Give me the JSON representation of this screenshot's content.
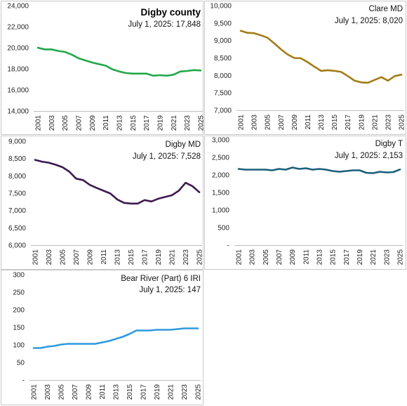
{
  "chart_data": [
    {
      "type": "line",
      "title": "Digby county",
      "subtitle": "July 1, 2025: 17,848",
      "color": "#22a84a",
      "ylim": [
        14000,
        24000
      ],
      "yticks": [
        14000,
        16000,
        18000,
        20000,
        22000,
        24000
      ],
      "ytick_labels": [
        "14,000",
        "16,000",
        "18,000",
        "20,000",
        "22,000",
        "24,000"
      ],
      "x": [
        2001,
        2002,
        2003,
        2004,
        2005,
        2006,
        2007,
        2008,
        2009,
        2010,
        2011,
        2012,
        2013,
        2014,
        2015,
        2016,
        2017,
        2018,
        2019,
        2020,
        2021,
        2022,
        2023,
        2024,
        2025
      ],
      "xtick_labels": [
        "2001",
        "2003",
        "2005",
        "2007",
        "2009",
        "2011",
        "2013",
        "2015",
        "2017",
        "2019",
        "2021",
        "2023",
        "2025"
      ],
      "values": [
        20000,
        19850,
        19850,
        19700,
        19600,
        19350,
        19000,
        18800,
        18600,
        18450,
        18300,
        17950,
        17750,
        17600,
        17550,
        17550,
        17550,
        17350,
        17400,
        17350,
        17450,
        17750,
        17800,
        17880,
        17848
      ]
    },
    {
      "type": "line",
      "title": "Clare MD",
      "subtitle": "July 1, 2025: 8,020",
      "color": "#a27c15",
      "ylim": [
        7000,
        10000
      ],
      "yticks": [
        7000,
        7500,
        8000,
        8500,
        9000,
        9500,
        10000
      ],
      "ytick_labels": [
        "7,000",
        "7,500",
        "8,000",
        "8,500",
        "9,000",
        "9,500",
        "10,000"
      ],
      "x": [
        2001,
        2002,
        2003,
        2004,
        2005,
        2006,
        2007,
        2008,
        2009,
        2010,
        2011,
        2012,
        2013,
        2014,
        2015,
        2016,
        2017,
        2018,
        2019,
        2020,
        2021,
        2022,
        2023,
        2024,
        2025
      ],
      "xtick_labels": [
        "2001",
        "2003",
        "2005",
        "2007",
        "2009",
        "2011",
        "2013",
        "2015",
        "2017",
        "2019",
        "2021",
        "2023",
        "2025"
      ],
      "values": [
        9280,
        9220,
        9210,
        9150,
        9080,
        8920,
        8750,
        8600,
        8500,
        8490,
        8380,
        8250,
        8130,
        8150,
        8130,
        8100,
        7980,
        7850,
        7800,
        7790,
        7870,
        7950,
        7850,
        7980,
        8020
      ]
    },
    {
      "type": "line",
      "title": "Digby MD",
      "subtitle": "July 1, 2025: 7,528",
      "color": "#3d1a4f",
      "ylim": [
        6000,
        9000
      ],
      "yticks": [
        6000,
        6500,
        7000,
        7500,
        8000,
        8500,
        9000
      ],
      "ytick_labels": [
        "6,000",
        "6,500",
        "7,000",
        "7,500",
        "8,000",
        "8,500",
        "9,000"
      ],
      "x": [
        2001,
        2002,
        2003,
        2004,
        2005,
        2006,
        2007,
        2008,
        2009,
        2010,
        2011,
        2012,
        2013,
        2014,
        2015,
        2016,
        2017,
        2018,
        2019,
        2020,
        2021,
        2022,
        2023,
        2024,
        2025
      ],
      "xtick_labels": [
        "2001",
        "2003",
        "2005",
        "2007",
        "2009",
        "2011",
        "2013",
        "2015",
        "2017",
        "2019",
        "2021",
        "2023",
        "2025"
      ],
      "values": [
        8460,
        8410,
        8380,
        8320,
        8250,
        8120,
        7920,
        7880,
        7740,
        7650,
        7570,
        7490,
        7320,
        7220,
        7200,
        7200,
        7300,
        7260,
        7340,
        7390,
        7440,
        7570,
        7800,
        7700,
        7528
      ]
    },
    {
      "type": "line",
      "title": "Digby T",
      "subtitle": "July 1, 2025: 2,153",
      "color": "#1a5f7a",
      "ylim": [
        0,
        3000
      ],
      "yticks": [
        0,
        500,
        1000,
        1500,
        2000,
        2500,
        3000
      ],
      "ytick_labels": [
        "-",
        "500",
        "1,000",
        "1,500",
        "2,000",
        "2,500",
        "3,000"
      ],
      "x": [
        2001,
        2002,
        2003,
        2004,
        2005,
        2006,
        2007,
        2008,
        2009,
        2010,
        2011,
        2012,
        2013,
        2014,
        2015,
        2016,
        2017,
        2018,
        2019,
        2020,
        2021,
        2022,
        2023,
        2024,
        2025
      ],
      "xtick_labels": [
        "2001",
        "2003",
        "2005",
        "2007",
        "2009",
        "2011",
        "2013",
        "2015",
        "2017",
        "2019",
        "2021",
        "2023",
        "2025"
      ],
      "values": [
        2170,
        2150,
        2150,
        2150,
        2150,
        2130,
        2170,
        2150,
        2210,
        2170,
        2190,
        2150,
        2170,
        2150,
        2110,
        2090,
        2110,
        2130,
        2130,
        2060,
        2050,
        2090,
        2070,
        2080,
        2153
      ]
    },
    {
      "type": "line",
      "title": "Bear River (Part) 6 IRI",
      "subtitle": "July 1, 2025: 147",
      "color": "#2e9ae0",
      "ylim": [
        0,
        300
      ],
      "yticks": [
        0,
        50,
        100,
        150,
        200,
        250,
        300
      ],
      "ytick_labels": [
        "-",
        "50",
        "100",
        "150",
        "200",
        "250",
        "300"
      ],
      "x": [
        2001,
        2002,
        2003,
        2004,
        2005,
        2006,
        2007,
        2008,
        2009,
        2010,
        2011,
        2012,
        2013,
        2014,
        2015,
        2016,
        2017,
        2018,
        2019,
        2020,
        2021,
        2022,
        2023,
        2024,
        2025
      ],
      "xtick_labels": [
        "2001",
        "2003",
        "2005",
        "2007",
        "2009",
        "2011",
        "2013",
        "2015",
        "2017",
        "2019",
        "2021",
        "2023",
        "2025"
      ],
      "values": [
        91,
        91,
        95,
        97,
        101,
        103,
        103,
        103,
        103,
        103,
        107,
        111,
        117,
        123,
        131,
        141,
        141,
        141,
        143,
        143,
        143,
        145,
        147,
        147,
        147
      ]
    }
  ]
}
